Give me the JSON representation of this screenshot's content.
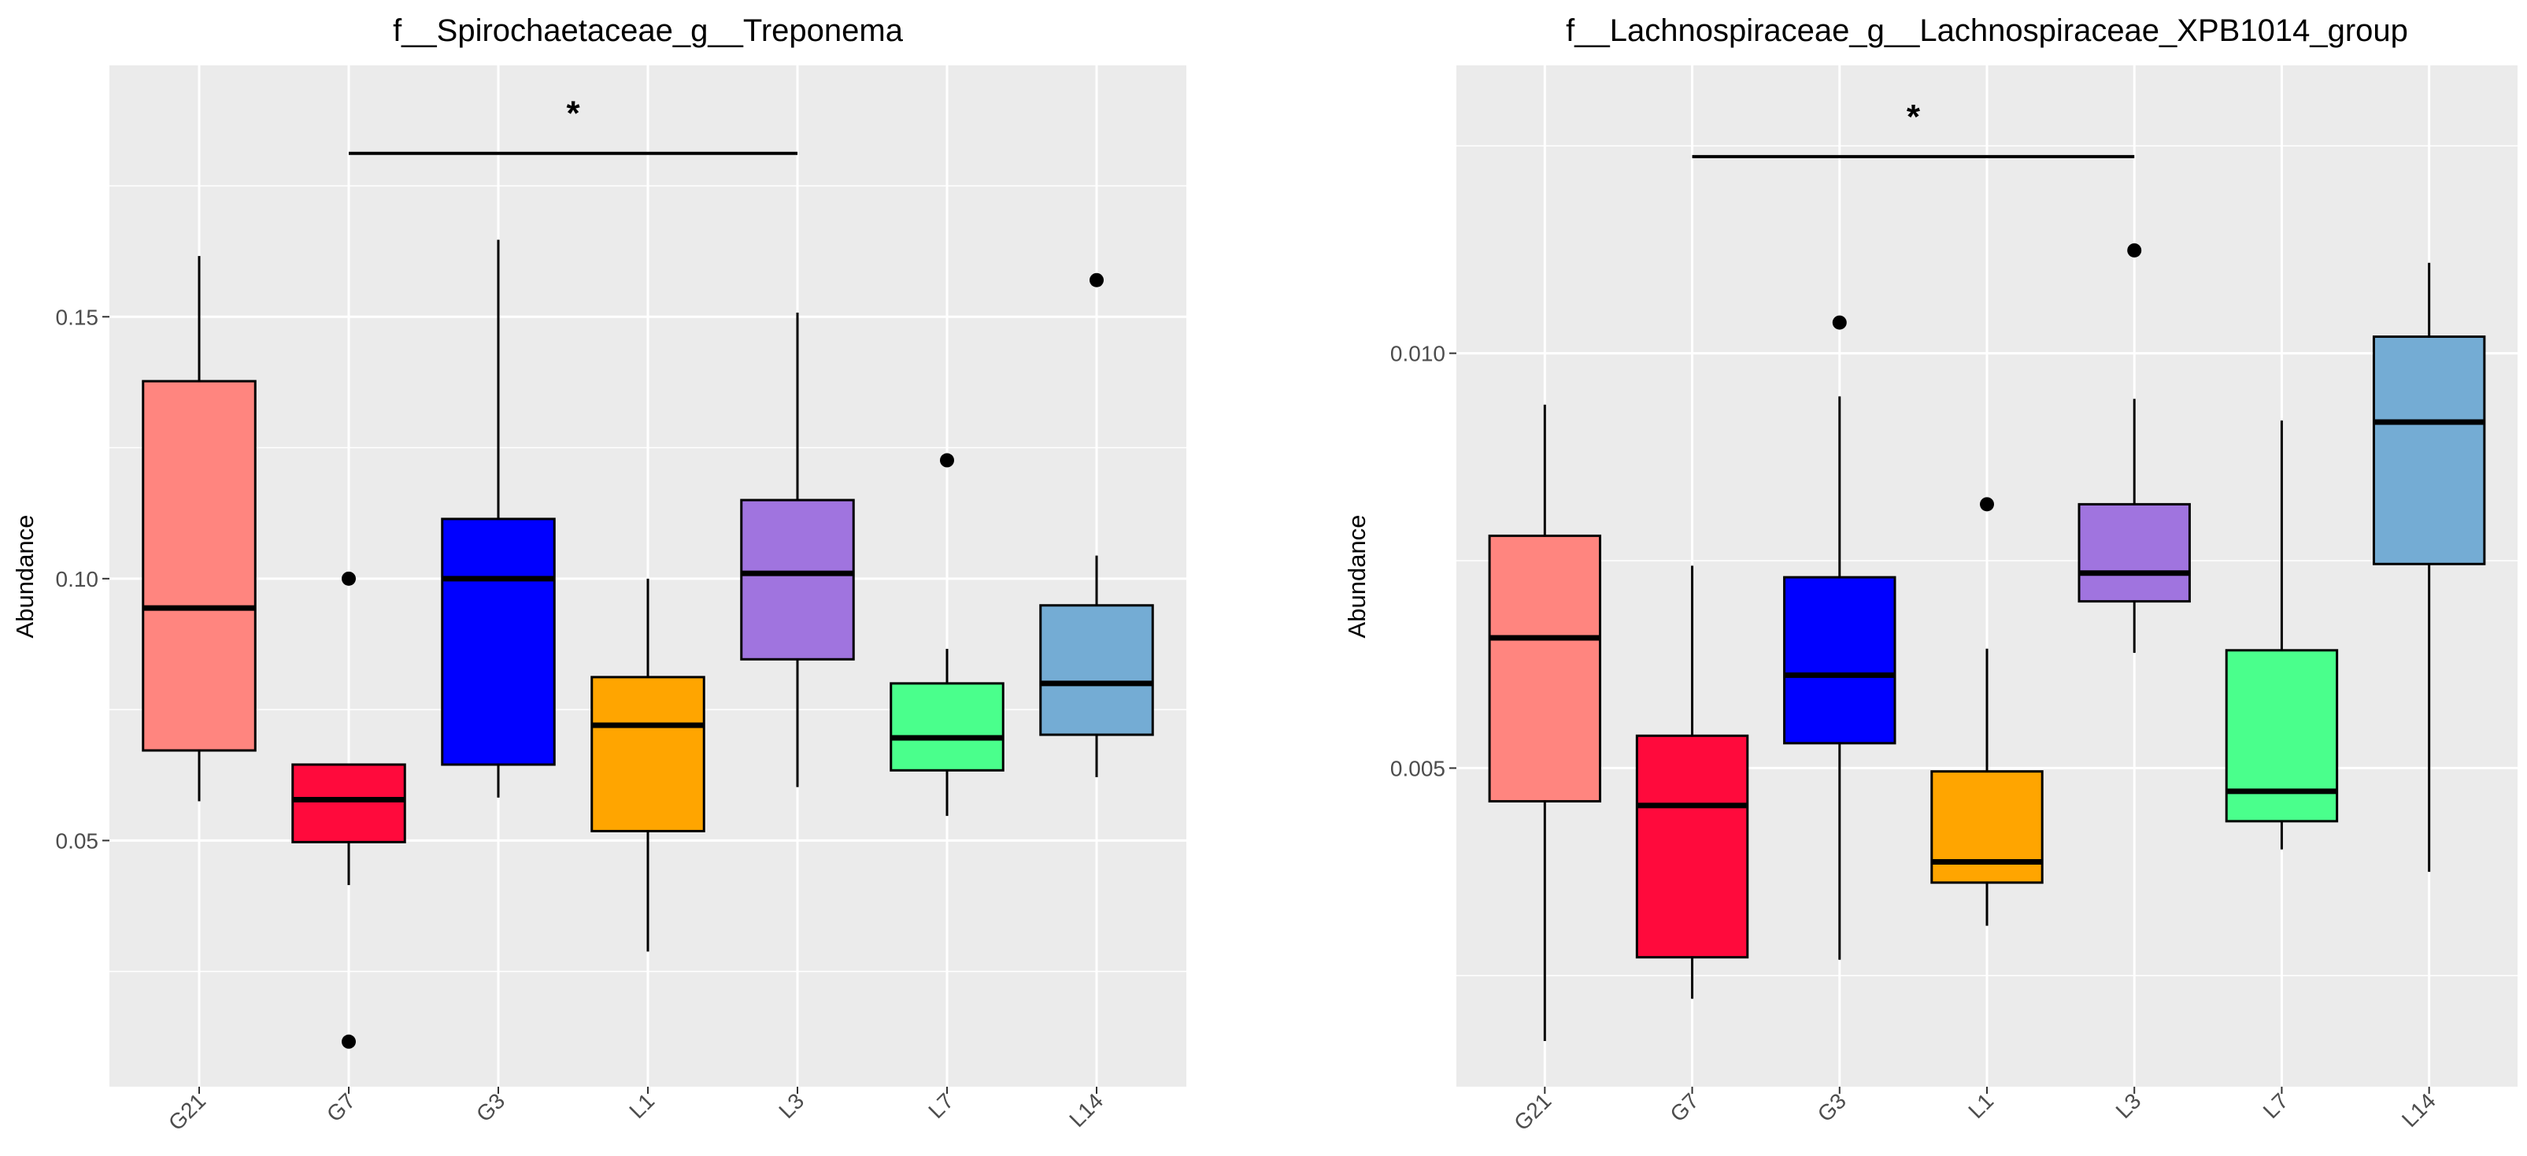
{
  "chart_data": [
    {
      "type": "box",
      "title": "f__Spirochaetaceae_g__Treponema",
      "xlabel": "",
      "ylabel": "Abundance",
      "ylim": [
        0.003,
        0.198
      ],
      "yticks": [
        0.05,
        0.1,
        0.15
      ],
      "ytick_labels": [
        "0.05",
        "0.10",
        "0.15"
      ],
      "yminor": [
        0.025,
        0.075,
        0.125,
        0.175
      ],
      "grid": true,
      "categories": [
        "G21",
        "G7",
        "G3",
        "L1",
        "L3",
        "L7",
        "L14"
      ],
      "colors": [
        "#FF857F",
        "#FF0A3C",
        "#0000FF",
        "#FFA500",
        "#A074DF",
        "#4AFF8C",
        "#74ACD4"
      ],
      "boxes": [
        {
          "min": 0.0575,
          "q1": 0.0672,
          "median": 0.0944,
          "q3": 0.1377,
          "max": 0.1616,
          "outliers": []
        },
        {
          "min": 0.0415,
          "q1": 0.0497,
          "median": 0.0578,
          "q3": 0.0645,
          "max": 0.0645,
          "outliers": [
            0.1,
            0.0116
          ]
        },
        {
          "min": 0.0582,
          "q1": 0.0645,
          "median": 0.1,
          "q3": 0.1114,
          "max": 0.1647,
          "outliers": []
        },
        {
          "min": 0.0288,
          "q1": 0.0518,
          "median": 0.072,
          "q3": 0.0812,
          "max": 0.1,
          "outliers": []
        },
        {
          "min": 0.0602,
          "q1": 0.0846,
          "median": 0.101,
          "q3": 0.115,
          "max": 0.1508,
          "outliers": []
        },
        {
          "min": 0.0547,
          "q1": 0.0634,
          "median": 0.0696,
          "q3": 0.08,
          "max": 0.0866,
          "outliers": [
            0.1226
          ]
        },
        {
          "min": 0.0621,
          "q1": 0.0702,
          "median": 0.08,
          "q3": 0.0949,
          "max": 0.1044,
          "outliers": [
            0.157
          ]
        }
      ],
      "significance": {
        "from": "G7",
        "to": "L3",
        "y": 0.1812,
        "label": "*"
      }
    },
    {
      "type": "box",
      "title": "f__Lachnospiraceae_g__Lachnospiraceae_XPB1014_group",
      "xlabel": "",
      "ylabel": "Abundance",
      "ylim": [
        0.00116,
        0.01347
      ],
      "yticks": [
        0.005,
        0.01
      ],
      "ytick_labels": [
        "0.005",
        "0.010"
      ],
      "yminor": [
        0.0025,
        0.0075,
        0.0125
      ],
      "grid": true,
      "categories": [
        "G21",
        "G7",
        "G3",
        "L1",
        "L3",
        "L7",
        "L14"
      ],
      "colors": [
        "#FF857F",
        "#FF0A3C",
        "#0000FF",
        "#FFA500",
        "#A074DF",
        "#4AFF8C",
        "#74ACD4"
      ],
      "boxes": [
        {
          "min": 0.00171,
          "q1": 0.0046,
          "median": 0.00657,
          "q3": 0.0078,
          "max": 0.00938,
          "outliers": []
        },
        {
          "min": 0.00222,
          "q1": 0.00272,
          "median": 0.00455,
          "q3": 0.00539,
          "max": 0.00744,
          "outliers": []
        },
        {
          "min": 0.00269,
          "q1": 0.0053,
          "median": 0.00612,
          "q3": 0.0073,
          "max": 0.00948,
          "outliers": [
            0.01037
          ]
        },
        {
          "min": 0.0031,
          "q1": 0.00362,
          "median": 0.00387,
          "q3": 0.00496,
          "max": 0.00644,
          "outliers": [
            0.00818
          ]
        },
        {
          "min": 0.00639,
          "q1": 0.00701,
          "median": 0.00735,
          "q3": 0.00818,
          "max": 0.00945,
          "outliers": [
            0.01124
          ]
        },
        {
          "min": 0.00402,
          "q1": 0.00436,
          "median": 0.00472,
          "q3": 0.00642,
          "max": 0.00919,
          "outliers": []
        },
        {
          "min": 0.00375,
          "q1": 0.00746,
          "median": 0.00917,
          "q3": 0.0102,
          "max": 0.01109,
          "outliers": []
        }
      ],
      "significance": {
        "from": "G7",
        "to": "L3",
        "y": 0.01237,
        "label": "*"
      }
    }
  ]
}
